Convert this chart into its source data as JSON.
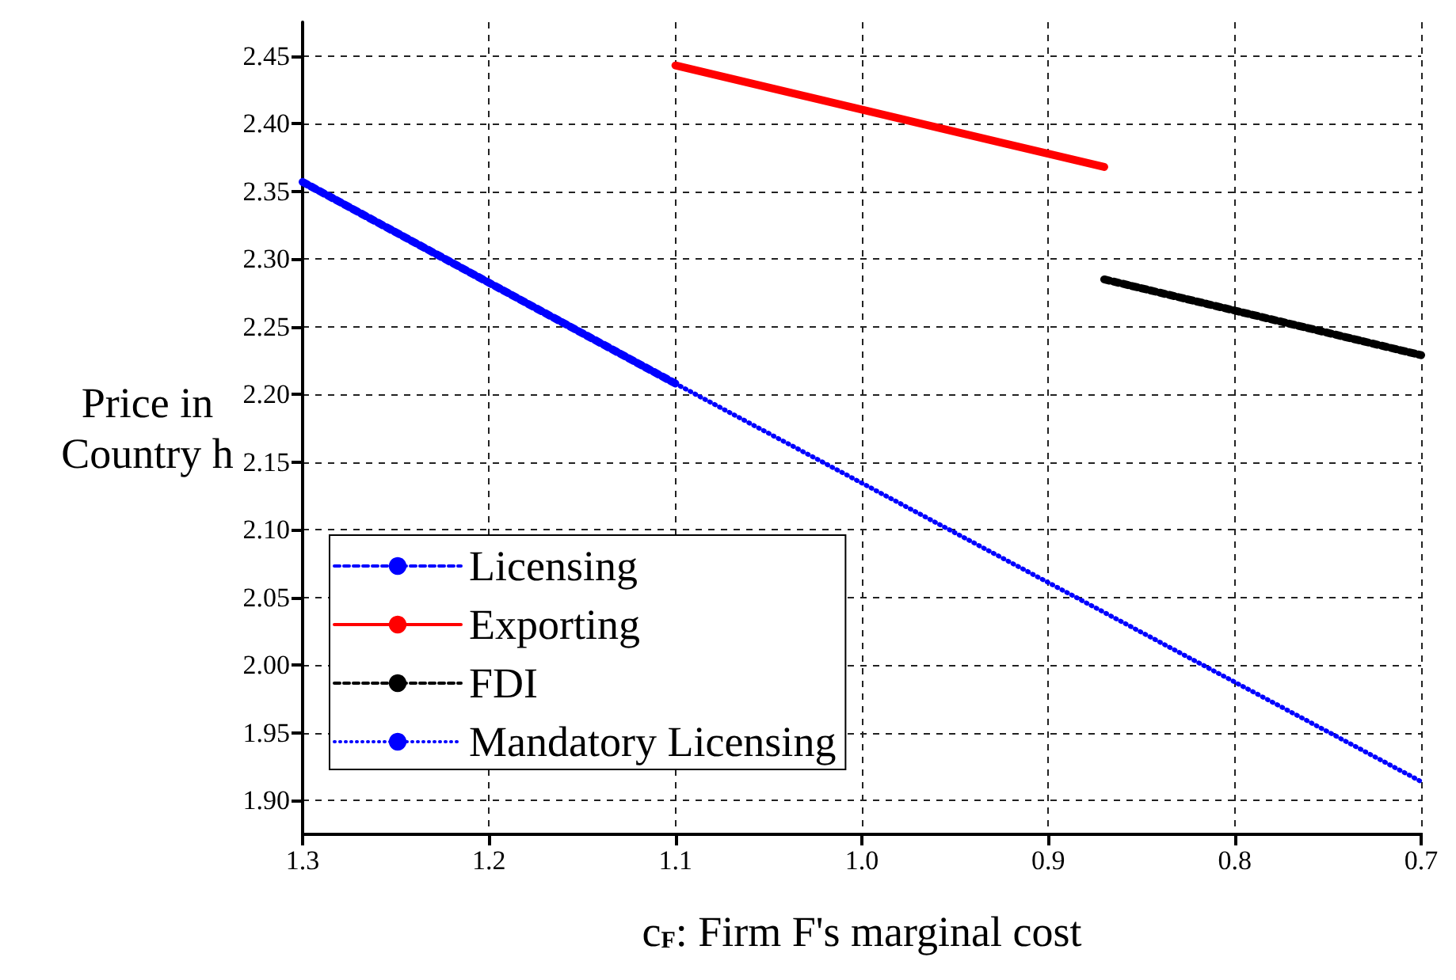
{
  "chart_data": {
    "type": "line",
    "xlabel": "c$_{F}$: Firm F's marginal cost",
    "ylabel": "Price in\nCountry h",
    "xlim": [
      1.3,
      0.7
    ],
    "xticks": [
      1.3,
      1.2,
      1.1,
      {
        "value": 1,
        "label": "1.0"
      },
      0.9,
      0.8,
      0.7
    ],
    "ylim": [
      1.875,
      2.475
    ],
    "yticks": [
      {
        "value": 1.9,
        "label": "1.90"
      },
      1.95,
      {
        "value": 2,
        "label": "2.00"
      },
      2.05,
      {
        "value": 2.1,
        "label": "2.10"
      },
      2.15,
      {
        "value": 2.2,
        "label": "2.20"
      },
      2.25,
      {
        "value": 2.3,
        "label": "2.30"
      },
      2.35,
      {
        "value": 2.4,
        "label": "2.40"
      },
      2.45
    ],
    "grid": true,
    "legend": "bottom left",
    "marker": "none",
    "series": [
      {
        "name": "Licensing",
        "color": "#0000ff",
        "line_style": "dashed",
        "x": [
          1.3,
          1.1
        ],
        "values": [
          2.357,
          2.208
        ]
      },
      {
        "name": "Exporting",
        "color": "#ff0000",
        "line_style": "solid",
        "x": [
          1.1,
          0.87
        ],
        "values": [
          2.443,
          2.368
        ]
      },
      {
        "name": "FDI",
        "color": "#000000",
        "line_style": "dashed",
        "x": [
          0.87,
          0.7
        ],
        "values": [
          2.285,
          2.229
        ]
      },
      {
        "name": "Mandatory Licensing",
        "color": "#0000ff",
        "line_style": "dotted",
        "x": [
          1.1,
          0.7
        ],
        "values": [
          2.208,
          1.914
        ]
      }
    ]
  }
}
